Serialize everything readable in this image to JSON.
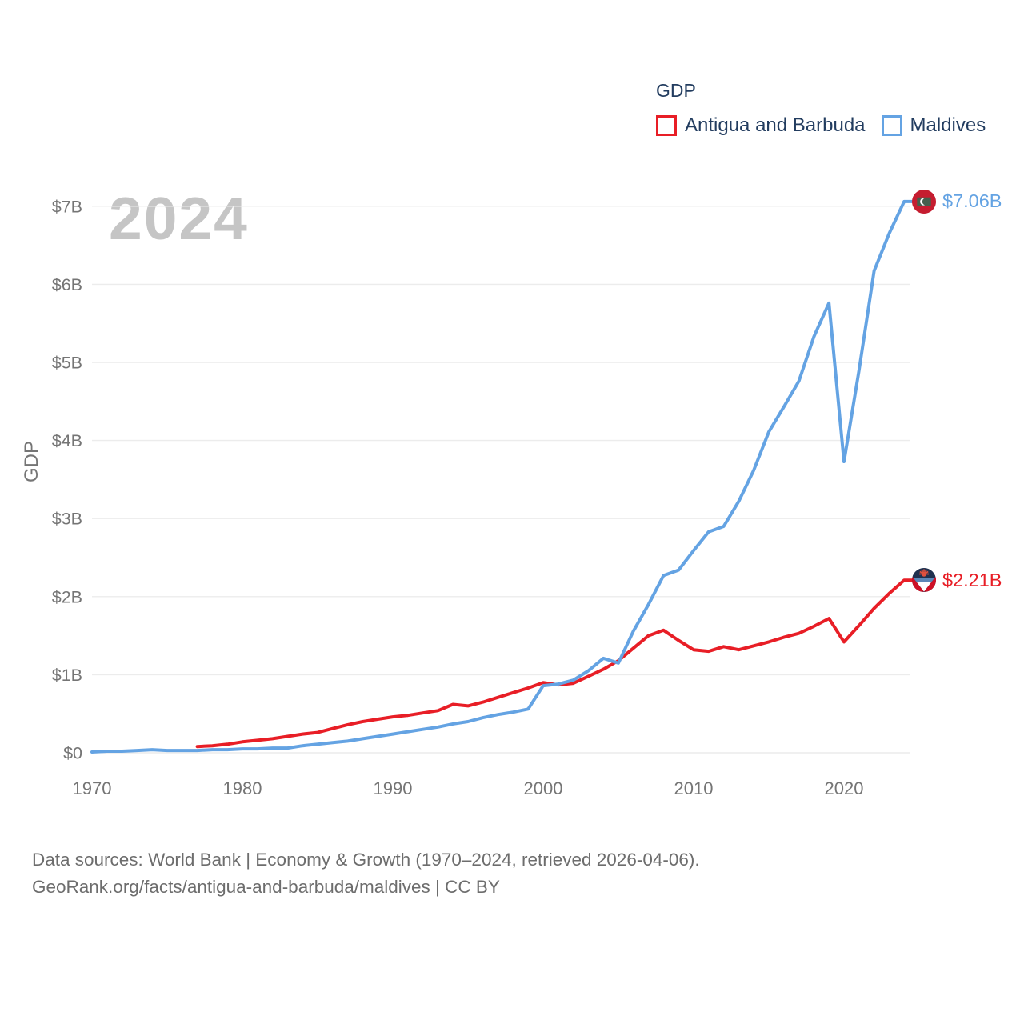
{
  "legend": {
    "title": "GDP",
    "items": [
      {
        "label": "Antigua and Barbuda"
      },
      {
        "label": "Maldives"
      }
    ]
  },
  "watermark": "2024",
  "y_axis": {
    "label": "GDP",
    "ticks": [
      "$0",
      "$1B",
      "$2B",
      "$3B",
      "$4B",
      "$5B",
      "$6B",
      "$7B"
    ]
  },
  "x_axis": {
    "ticks": [
      "1970",
      "1980",
      "1990",
      "2000",
      "2010",
      "2020"
    ]
  },
  "end_labels": {
    "maldives": "$7.06B",
    "antigua": "$2.21B"
  },
  "flag_icons": [
    "antigua-and-barbuda-flag-icon",
    "maldives-flag-icon"
  ],
  "colors": {
    "antigua_red": "#e81e26",
    "maldives_blue": "#64a3e3",
    "legend_text": "#223c5f",
    "axis_text": "#757575",
    "footer_text": "#6d6d6d",
    "watermark_gray": "#c5c5c5",
    "gridline": "#ececec"
  },
  "footer": {
    "line1": "Data sources: World Bank | Economy & Growth (1970–2024, retrieved 2026-04-06).",
    "line2": "GeoRank.org/facts/antigua-and-barbuda/maldives | CC BY"
  },
  "chart_data": {
    "type": "line",
    "title": "GDP",
    "xlabel": "",
    "ylabel": "GDP",
    "y_unit": "billion USD",
    "xlim": [
      1970,
      2024
    ],
    "ylim": [
      0,
      7.3
    ],
    "grid": "horizontal",
    "legend_position": "top-right",
    "x": [
      1970,
      1971,
      1972,
      1973,
      1974,
      1975,
      1976,
      1977,
      1978,
      1979,
      1980,
      1981,
      1982,
      1983,
      1984,
      1985,
      1986,
      1987,
      1988,
      1989,
      1990,
      1991,
      1992,
      1993,
      1994,
      1995,
      1996,
      1997,
      1998,
      1999,
      2000,
      2001,
      2002,
      2003,
      2004,
      2005,
      2006,
      2007,
      2008,
      2009,
      2010,
      2011,
      2012,
      2013,
      2014,
      2015,
      2016,
      2017,
      2018,
      2019,
      2020,
      2021,
      2022,
      2023,
      2024
    ],
    "series": [
      {
        "name": "Antigua and Barbuda",
        "color": "#e81e26",
        "end_value_label": "$2.21B",
        "values": [
          null,
          null,
          null,
          null,
          null,
          null,
          null,
          0.08,
          0.09,
          0.11,
          0.14,
          0.16,
          0.18,
          0.21,
          0.24,
          0.26,
          0.31,
          0.36,
          0.4,
          0.43,
          0.46,
          0.48,
          0.51,
          0.54,
          0.62,
          0.6,
          0.65,
          0.71,
          0.77,
          0.83,
          0.9,
          0.87,
          0.89,
          0.98,
          1.07,
          1.18,
          1.34,
          1.5,
          1.57,
          1.44,
          1.32,
          1.3,
          1.36,
          1.32,
          1.37,
          1.42,
          1.48,
          1.53,
          1.62,
          1.72,
          1.42,
          1.63,
          1.85,
          2.04,
          2.21
        ]
      },
      {
        "name": "Maldives",
        "color": "#64a3e3",
        "end_value_label": "$7.06B",
        "values": [
          0.01,
          0.02,
          0.02,
          0.03,
          0.04,
          0.03,
          0.03,
          0.03,
          0.04,
          0.04,
          0.05,
          0.05,
          0.06,
          0.06,
          0.09,
          0.11,
          0.13,
          0.15,
          0.18,
          0.21,
          0.24,
          0.27,
          0.3,
          0.33,
          0.37,
          0.4,
          0.45,
          0.49,
          0.52,
          0.56,
          0.86,
          0.88,
          0.93,
          1.05,
          1.21,
          1.15,
          1.56,
          1.9,
          2.27,
          2.34,
          2.59,
          2.83,
          2.9,
          3.22,
          3.62,
          4.11,
          4.43,
          4.76,
          5.33,
          5.76,
          3.73,
          4.9,
          6.17,
          6.65,
          7.06
        ]
      }
    ]
  }
}
